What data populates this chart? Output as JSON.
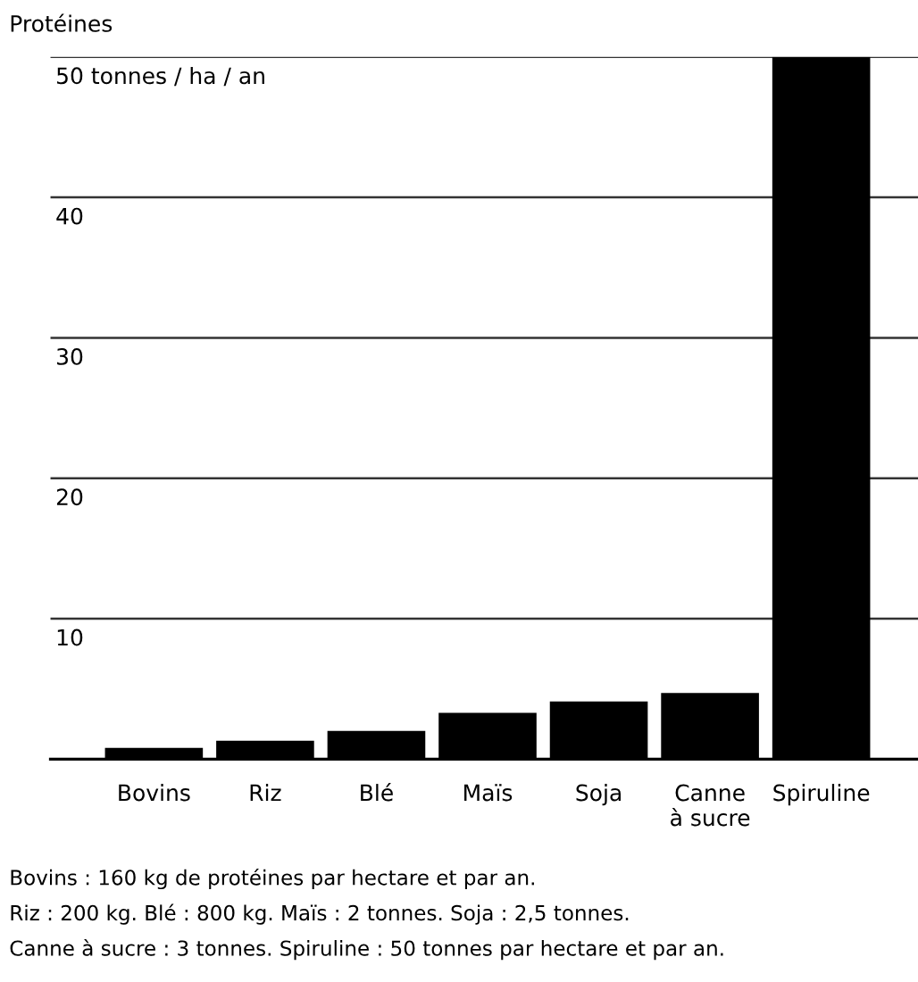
{
  "chart_data": {
    "type": "bar",
    "title": "Protéines",
    "categories": [
      "Bovins",
      "Riz",
      "Blé",
      "Maïs",
      "Soja",
      "Canne\nà sucre",
      "Spiruline"
    ],
    "values": [
      0.8,
      1.3,
      2,
      3.3,
      4.1,
      4.7,
      50
    ],
    "color": "#000000",
    "ylim": [
      0,
      50
    ],
    "yticks": [
      {
        "value": 0,
        "label": null
      },
      10,
      20,
      30,
      40,
      {
        "value": 50,
        "label": "50 tonnes / ha / an"
      }
    ],
    "grid": "y",
    "annotations": [
      "Bovins : 160 kg de protéines par hectare et par an.",
      "Riz : 200 kg. Blé : 800 kg. Maïs : 2 tonnes. Soja : 2,5 tonnes.",
      "Canne à sucre : 3 tonnes. Spiruline : 50 tonnes par hectare et par an."
    ]
  }
}
